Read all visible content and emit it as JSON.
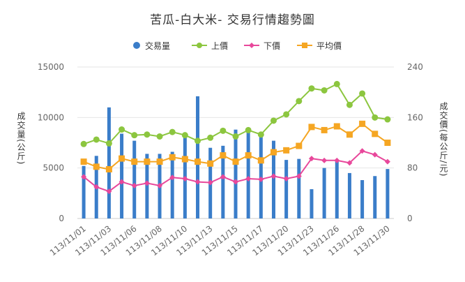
{
  "chart_data": {
    "type": "bar+line",
    "title": "苦瓜-白大米- 交易行情趨勢圖",
    "y_left_label": "成交量(公斤)",
    "y_right_label": "成交價(每公斤/元)",
    "y_left_range": [
      0,
      15000
    ],
    "y_right_range": [
      0,
      240
    ],
    "y_left_ticks": [
      "0",
      "5000",
      "10000",
      "15000"
    ],
    "y_right_ticks": [
      "0",
      "80",
      "160",
      "240"
    ],
    "grid": true,
    "legend_position": "top",
    "x_tick_labels": [
      "113/11/01",
      "113/11/03",
      "113/11/06",
      "113/11/08",
      "113/11/10",
      "113/11/13",
      "113/11/15",
      "113/11/17",
      "113/11/20",
      "113/11/23",
      "113/11/26",
      "113/11/28",
      "113/11/30"
    ],
    "x_tick_indices": [
      0,
      2,
      4,
      6,
      8,
      10,
      12,
      14,
      16,
      18,
      20,
      22,
      24
    ],
    "point_count": 25,
    "series": [
      {
        "name": "交易量",
        "type": "bar",
        "axis": "left",
        "color": "#3a7dc9",
        "values": [
          5200,
          6200,
          11000,
          8400,
          7700,
          6400,
          6400,
          6600,
          8000,
          12100,
          7000,
          7200,
          8800,
          8600,
          8300,
          7700,
          5800,
          5900,
          2900,
          5000,
          5800,
          4500,
          3800,
          4200,
          4900
        ]
      },
      {
        "name": "上價",
        "type": "line",
        "axis": "right",
        "color": "#8cc63f",
        "marker": "circle",
        "values": [
          118,
          125,
          119,
          141,
          132,
          133,
          130,
          137,
          132,
          123,
          128,
          139,
          130,
          140,
          133,
          155,
          165,
          186,
          206,
          203,
          213,
          180,
          198,
          160,
          157
        ]
      },
      {
        "name": "下價",
        "type": "line",
        "axis": "right",
        "color": "#e8489b",
        "marker": "diamond",
        "values": [
          66,
          50,
          43,
          58,
          52,
          56,
          52,
          65,
          63,
          58,
          57,
          66,
          58,
          63,
          62,
          67,
          63,
          67,
          95,
          92,
          92,
          88,
          107,
          101,
          90
        ]
      },
      {
        "name": "平均價",
        "type": "line",
        "axis": "right",
        "color": "#f5a623",
        "marker": "square",
        "values": [
          90,
          82,
          78,
          95,
          90,
          90,
          90,
          97,
          94,
          90,
          87,
          100,
          90,
          100,
          92,
          105,
          108,
          115,
          145,
          140,
          146,
          133,
          150,
          134,
          120
        ]
      }
    ]
  }
}
